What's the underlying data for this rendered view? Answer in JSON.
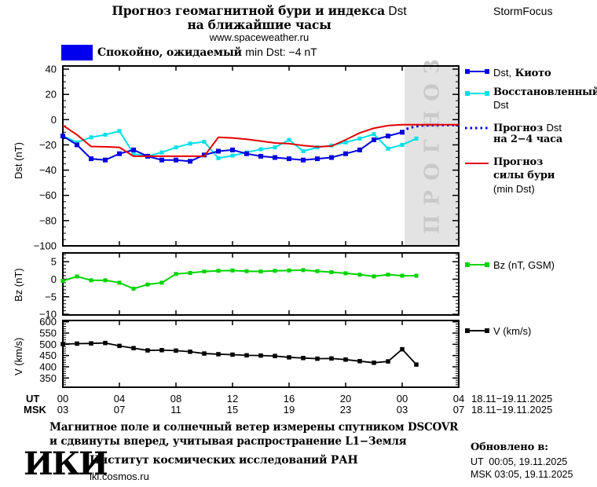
{
  "header": {
    "title_ru": "Прогноз геомагнитной бури и индекса",
    "title_en": "Dst",
    "title_line2": "на ближайшие часы",
    "site": "www.spaceweather.ru",
    "brand": "StormFocus"
  },
  "banner": {
    "color": "#0000ee",
    "text_ru": "Спокойно, ожидаемый",
    "text_en": "min Dst: −4 nT"
  },
  "legend": {
    "kyoto_en": "Dst,",
    "kyoto_ru": "Киото",
    "restored_ru": "Восстановленный",
    "restored_en": "Dst",
    "fc_ru": "Прогноз",
    "fc_en": "Dst",
    "fc_line2": "на 2−4 часа",
    "storm_l1": "Прогноз",
    "storm_l2": "силы бури",
    "storm_l3": "(min Dst)",
    "bz": "Bz (nT, GSM)",
    "v": "V (km/s)"
  },
  "ylabels": {
    "dst": "Dst (nT)",
    "bz": "Bz (nT)",
    "v": "V (km/s)"
  },
  "xaxis": {
    "ut": "UT",
    "msk": "MSK",
    "ut_hours": [
      "00",
      "04",
      "08",
      "12",
      "16",
      "20",
      "00",
      "04"
    ],
    "msk_hours": [
      "03",
      "07",
      "11",
      "15",
      "19",
      "23",
      "03",
      "07"
    ],
    "ut_date": "18.11−19.11.2025",
    "msk_date": "18.11−19.11.2025"
  },
  "footer": {
    "note_line1": "Магнитное поле и солнечный ветер измерены спутником DSCOVR",
    "note_line2": "и сдвинуты вперед, учитывая распространение L1−Земля",
    "logo": "ИКИ",
    "institute": "Институт космических исследований РАН",
    "site": "iki.cosmos.ru",
    "updated_label": "Обновлено в:",
    "updated_ut": "UT  00:05, 19.11.2025",
    "updated_msk": "MSK 03:05, 19.11.2025"
  },
  "chart_data": [
    {
      "type": "line",
      "name": "dst-panel",
      "ylabel": "Dst (nT)",
      "xlim": [
        0,
        28
      ],
      "xticks": [
        0,
        4,
        8,
        12,
        16,
        20,
        24,
        28
      ],
      "ylim": [
        -100,
        42.5
      ],
      "yticks": [
        40,
        20,
        0,
        -20,
        -40,
        -60,
        -80,
        -100
      ],
      "ytick_labels": [
        "40",
        "20",
        "0",
        "−20",
        "−40",
        "−60",
        "−80",
        "−100"
      ],
      "yminor": 5,
      "forecast_band": {
        "start": 24.17,
        "end": 28,
        "color": "#e3e3e3",
        "label": "ПРОГНОЗ",
        "label_color": "#c9c9c9"
      },
      "series": [
        {
          "id": "restored-dst",
          "name": "Восстановленный Dst",
          "color": "#00e0e6",
          "width": 2,
          "marker": true,
          "marker_size": 5,
          "x": [
            0,
            1,
            2,
            3,
            4,
            5,
            6,
            7,
            8,
            9,
            10,
            11,
            12,
            13,
            14,
            15,
            16,
            17,
            18,
            19,
            20,
            21,
            22,
            23,
            24,
            25
          ],
          "y": [
            -13,
            -18,
            -14,
            -12,
            -9,
            -27,
            -29,
            -26,
            -22,
            -19,
            -17.5,
            -30.5,
            -28.5,
            -26,
            -23.5,
            -22,
            -16,
            -25,
            -22,
            -20.5,
            -18,
            -15,
            -11.5,
            -23,
            -20,
            -15
          ]
        },
        {
          "id": "dst-kyoto",
          "name": "Dst, Киото",
          "color": "#0000e0",
          "width": 2,
          "marker": true,
          "marker_size": 6,
          "x": [
            0,
            1,
            2,
            3,
            4,
            5,
            6,
            7,
            8,
            9,
            10,
            11,
            12,
            13,
            14,
            15,
            16,
            17,
            18,
            19,
            20,
            21,
            22,
            23,
            24
          ],
          "y": [
            -13,
            -20,
            -31,
            -32,
            -27,
            -24,
            -29,
            -32,
            -32,
            -33,
            -28,
            -25,
            -24,
            -27,
            -29,
            -30,
            -31,
            -32,
            -31,
            -30,
            -27,
            -24,
            -16,
            -13,
            -10
          ]
        },
        {
          "id": "forecast-dst-dotted",
          "name": "Прогноз Dst на 2−4 часа",
          "color": "#0000e0",
          "width": 3,
          "style": "dotted",
          "x": [
            24,
            24.4,
            24.9,
            25.5,
            26.3,
            27.1,
            28
          ],
          "y": [
            -9.5,
            -7,
            -5.5,
            -4.6,
            -4.4,
            -4.4,
            -4.4
          ]
        },
        {
          "id": "storm-forecast",
          "name": "Прогноз силы бури (min Dst)",
          "color": "#e60000",
          "width": 2,
          "x": [
            0,
            1,
            2,
            3,
            4,
            5,
            6,
            7,
            8,
            9,
            10,
            11,
            12,
            13,
            14,
            15,
            16,
            17,
            18,
            19,
            20,
            21,
            22,
            23,
            24,
            25,
            26,
            27,
            28
          ],
          "y": [
            -4.5,
            -12,
            -21.3,
            -21.5,
            -22,
            -29,
            -29,
            -29,
            -29,
            -29,
            -29,
            -14,
            -14.5,
            -15.5,
            -17,
            -18.5,
            -19,
            -20.5,
            -21.5,
            -21,
            -16,
            -10.5,
            -6.8,
            -4.7,
            -4,
            -4,
            -4,
            -4,
            -4
          ]
        }
      ]
    },
    {
      "type": "line",
      "name": "bz-panel",
      "ylabel": "Bz (nT)",
      "xlim": [
        0,
        28
      ],
      "xticks": [
        0,
        4,
        8,
        12,
        16,
        20,
        24,
        28
      ],
      "ylim": [
        -10.2,
        7.5
      ],
      "yticks": [
        5,
        0,
        -5,
        -10
      ],
      "ytick_labels": [
        "5",
        "0",
        "−5",
        "−10"
      ],
      "yminor": 1,
      "series": [
        {
          "id": "bz",
          "name": "Bz (nT, GSM)",
          "color": "#00d400",
          "width": 2,
          "marker": true,
          "marker_size": 5,
          "x": [
            0,
            1,
            2,
            3,
            4,
            5,
            6,
            7,
            8,
            9,
            10,
            11,
            12,
            13,
            14,
            15,
            16,
            17,
            18,
            19,
            20,
            21,
            22,
            23,
            24,
            25
          ],
          "y": [
            -0.5,
            0.8,
            -0.3,
            -0.3,
            -1.0,
            -2.7,
            -1.5,
            -1.0,
            1.5,
            1.8,
            2.2,
            2.4,
            2.5,
            2.3,
            2.2,
            2.4,
            2.5,
            2.6,
            2.3,
            2.0,
            1.7,
            1.3,
            0.8,
            1.3,
            1.0,
            1.0
          ]
        }
      ]
    },
    {
      "type": "line",
      "name": "v-panel",
      "ylabel": "V (km/s)",
      "xlim": [
        0,
        28
      ],
      "xticks": [
        0,
        4,
        8,
        12,
        16,
        20,
        24,
        28
      ],
      "ylim": [
        309,
        606
      ],
      "yticks": [
        600,
        550,
        500,
        450,
        400,
        350
      ],
      "ytick_labels": [
        "600",
        "550",
        "500",
        "450",
        "400",
        "350"
      ],
      "yminor": 10,
      "series": [
        {
          "id": "v",
          "name": "V (km/s)",
          "color": "#000000",
          "width": 1.8,
          "marker": true,
          "marker_size": 5.5,
          "x": [
            0,
            1,
            2,
            3,
            4,
            5,
            6,
            7,
            8,
            9,
            10,
            11,
            12,
            13,
            14,
            15,
            16,
            17,
            18,
            19,
            20,
            21,
            22,
            23,
            24,
            25
          ],
          "y": [
            501,
            503,
            504,
            506,
            493,
            483,
            473,
            474,
            472,
            467,
            459,
            456,
            454,
            451,
            450,
            448,
            442,
            439,
            436,
            437,
            432,
            425,
            418,
            424,
            478,
            410
          ]
        }
      ]
    }
  ]
}
